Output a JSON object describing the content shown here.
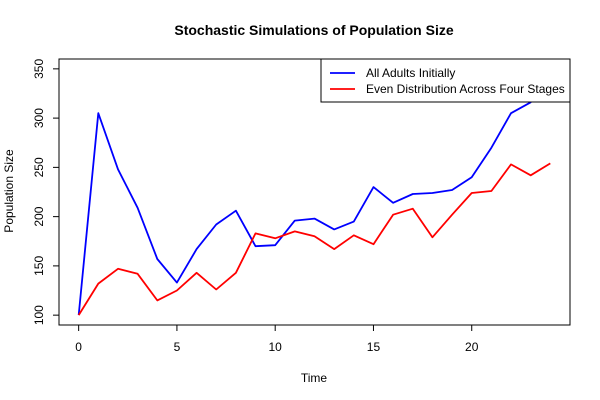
{
  "chart_data": {
    "type": "line",
    "title": "Stochastic Simulations of Population Size",
    "xlabel": "Time",
    "ylabel": "Population Size",
    "xlim": [
      -1,
      25
    ],
    "ylim": [
      90,
      360
    ],
    "xticks": [
      0,
      5,
      10,
      15,
      20
    ],
    "yticks": [
      100,
      150,
      200,
      250,
      300,
      350
    ],
    "grid": false,
    "legend_position": "top-right",
    "x": [
      0,
      1,
      2,
      3,
      4,
      5,
      6,
      7,
      8,
      9,
      10,
      11,
      12,
      13,
      14,
      15,
      16,
      17,
      18,
      19,
      20,
      21,
      22,
      23,
      24
    ],
    "series": [
      {
        "name": "All Adults Initially",
        "color": "#0000ff",
        "values": [
          100,
          305,
          248,
          209,
          157,
          133,
          167,
          192,
          206,
          170,
          171,
          196,
          198,
          187,
          195,
          230,
          214,
          223,
          224,
          227,
          240,
          270,
          305,
          316,
          358
        ]
      },
      {
        "name": "Even Distribution Across Four Stages",
        "color": "#ff0000",
        "values": [
          100,
          132,
          147,
          142,
          115,
          125,
          143,
          126,
          143,
          183,
          178,
          185,
          180,
          167,
          181,
          172,
          202,
          208,
          179,
          202,
          224,
          226,
          253,
          242,
          254
        ]
      }
    ]
  }
}
